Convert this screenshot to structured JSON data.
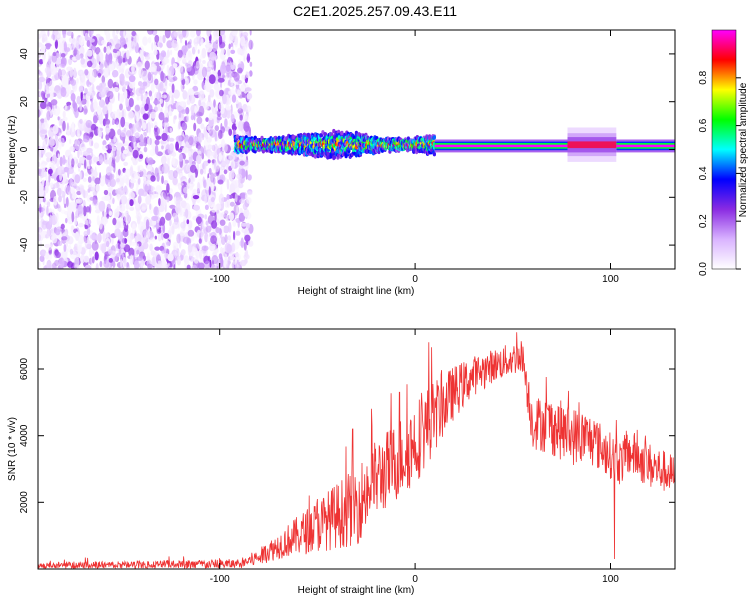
{
  "title": "C2E1.2025.257.09.43.E11",
  "colors": {
    "snr_line": "#ee3333",
    "background": "#ffffff",
    "frame": "#000000"
  },
  "chart_data": [
    {
      "type": "heatmap",
      "name": "spectrogram",
      "xlabel": "Height of straight line (km)",
      "ylabel": "Frequency (Hz)",
      "xlim": [
        -193,
        133
      ],
      "ylim": [
        -50,
        50
      ],
      "xticks": [
        -100,
        0,
        100
      ],
      "xtick_labels": [
        "-100",
        "0",
        "100"
      ],
      "yticks": [
        -40,
        -20,
        0,
        20,
        40
      ],
      "ytick_labels": [
        "-40",
        "-20",
        "0",
        "20",
        "40"
      ],
      "colorbar": {
        "label": "Normalized spectral amplitude",
        "range": [
          0,
          1
        ],
        "ticks": [
          0.0,
          0.2,
          0.4,
          0.6,
          0.8
        ],
        "tick_labels": [
          "0.0",
          "0.2",
          "0.4",
          "0.6",
          "0.8"
        ],
        "colormap": [
          "#ffffff",
          "#d9b3ff",
          "#8a2be2",
          "#0000ff",
          "#00ffff",
          "#00ff00",
          "#ffff00",
          "#ff0000",
          "#ff00ff"
        ]
      },
      "regions": [
        {
          "name": "noise",
          "x_range": [
            -193,
            -90
          ],
          "freq_range": [
            -50,
            50
          ],
          "amplitude_range": [
            0.02,
            0.25
          ]
        },
        {
          "name": "signal_broad",
          "x_range": [
            -92,
            10
          ],
          "center_freq": 2,
          "halfwidth_hz": [
            3,
            6
          ],
          "amplitude_range": [
            0.2,
            1.0
          ]
        },
        {
          "name": "signal_narrow",
          "x_range": [
            10,
            133
          ],
          "center_freq": 1.5,
          "halfwidth_hz": 1.5,
          "amplitude_range": [
            0.8,
            1.0
          ]
        },
        {
          "name": "signal_bump",
          "x_range": [
            78,
            103
          ],
          "center_freq": 2,
          "halfwidth_hz": 4,
          "amplitude_range": [
            0.3,
            0.9
          ]
        }
      ]
    },
    {
      "type": "line",
      "name": "snr",
      "xlabel": "Height of straight line (km)",
      "ylabel": "SNR (10 * v/v)",
      "xlim": [
        -193,
        133
      ],
      "ylim": [
        0,
        7200
      ],
      "xticks": [
        -100,
        0,
        100
      ],
      "xtick_labels": [
        "-100",
        "0",
        "100"
      ],
      "yticks": [
        2000,
        4000,
        6000
      ],
      "ytick_labels": [
        "2000",
        "4000",
        "6000"
      ],
      "envelope": {
        "x": [
          -193,
          -90,
          -80,
          -70,
          -60,
          -50,
          -40,
          -30,
          -20,
          -10,
          0,
          10,
          20,
          30,
          40,
          50,
          55,
          60,
          70,
          80,
          90,
          100,
          105,
          110,
          120,
          133
        ],
        "mean": [
          100,
          150,
          350,
          700,
          1000,
          1300,
          1600,
          1900,
          2700,
          3200,
          3800,
          4600,
          5300,
          5800,
          6100,
          6300,
          6400,
          4400,
          4300,
          4000,
          3900,
          3400,
          3200,
          3500,
          3100,
          2800
        ],
        "spread": [
          100,
          150,
          250,
          400,
          600,
          800,
          1000,
          1200,
          1200,
          1200,
          1300,
          1100,
          800,
          600,
          500,
          500,
          500,
          800,
          900,
          900,
          800,
          700,
          700,
          700,
          700,
          600
        ]
      },
      "spikes": [
        {
          "x": -50,
          "y": 2100
        },
        {
          "x": -32,
          "y": 4200
        },
        {
          "x": -22,
          "y": 4300
        },
        {
          "x": -8,
          "y": 5300
        },
        {
          "x": 7,
          "y": 6800
        },
        {
          "x": 52,
          "y": 7100
        },
        {
          "x": 102,
          "y": 300
        }
      ]
    }
  ]
}
